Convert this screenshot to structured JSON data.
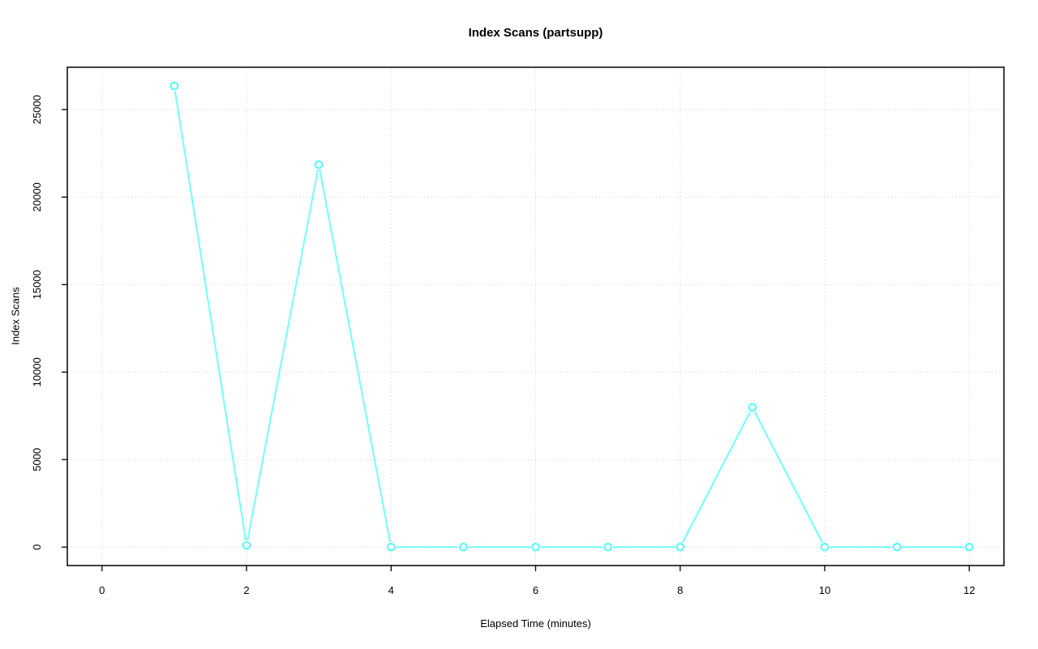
{
  "chart_data": {
    "type": "line",
    "title": "Index Scans (partsupp)",
    "xlabel": "Elapsed Time (minutes)",
    "ylabel": "Index Scans",
    "x": [
      1,
      2,
      3,
      4,
      5,
      6,
      7,
      8,
      9,
      10,
      11,
      12
    ],
    "y": [
      26350,
      100,
      21850,
      0,
      0,
      0,
      0,
      0,
      7980,
      0,
      0,
      0
    ],
    "x_ticks": [
      0,
      2,
      4,
      6,
      8,
      10,
      12
    ],
    "y_ticks": [
      0,
      5000,
      10000,
      15000,
      20000,
      25000
    ],
    "xlim": [
      -0.48,
      12.48
    ],
    "ylim": [
      -1055,
      27420
    ],
    "grid": true,
    "grid_style": "dotted",
    "legend": "none",
    "marker": "open-circle",
    "line_type": "points-joined-by-segments-with-gaps",
    "series_color": "#00FFFF",
    "grid_color": "#D3D3D3",
    "axis_color": "#000000",
    "background": "#FFFFFF"
  }
}
